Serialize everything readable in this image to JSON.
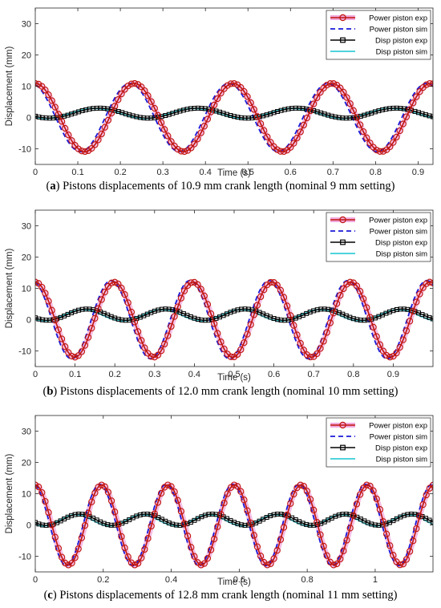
{
  "legend": {
    "power_exp": "Power piston exp",
    "power_sim": "Power piston sim",
    "disp_exp": "Disp piston exp",
    "disp_sim": "Disp piston sim"
  },
  "colors": {
    "power_exp": "#c0140c",
    "power_exp_glow": "#f0a8dc",
    "power_sim": "#1a1ad8",
    "disp_exp": "#000000",
    "disp_sim": "#4fd3dc"
  },
  "captions": [
    {
      "label": "(a)",
      "letter": "a",
      "text": "Pistons displacements of 10.9 mm crank length (nominal 9 mm setting)"
    },
    {
      "label": "(b)",
      "letter": "b",
      "text": "Pistons displacements of 12.0 mm crank length (nominal 10 mm setting)"
    },
    {
      "label": "(c)",
      "letter": "c",
      "text": "Pistons displacements of 12.8 mm crank length (nominal 11 mm setting)"
    }
  ],
  "chart_data": [
    {
      "type": "line",
      "xlabel": "Time (s)",
      "ylabel": "Displacement (mm)",
      "xlim": [
        0,
        0.935
      ],
      "ylim": [
        -15,
        35
      ],
      "xticks": [
        "0",
        "0.1",
        "0.2",
        "0.3",
        "0.4",
        "0.5",
        "0.6",
        "0.7",
        "0.8",
        "0.9"
      ],
      "yticks": [
        "-10",
        "0",
        "10",
        "20",
        "30"
      ],
      "legend_position": "top-right",
      "grid": false,
      "series_params": {
        "period_s": 0.2325,
        "power_exp": {
          "amplitude_mm": 10.9,
          "peak_time_s": 0.0
        },
        "power_sim": {
          "amplitude_mm": 10.9,
          "peak_time_s": -0.01,
          "min_mm": -11.0
        },
        "disp_exp": {
          "amplitude_mm": 1.6,
          "offset_mm": 1.4,
          "peak_time_s": 0.15
        },
        "disp_sim": {
          "amplitude_mm": 1.6,
          "offset_mm": 1.3,
          "peak_time_s": 0.14
        }
      }
    },
    {
      "type": "line",
      "xlabel": "Time (s)",
      "ylabel": "Displacement (mm)",
      "xlim": [
        0,
        1.0
      ],
      "ylim": [
        -15,
        35
      ],
      "xticks": [
        "0",
        "0.1",
        "0.2",
        "0.3",
        "0.4",
        "0.5",
        "0.6",
        "0.7",
        "0.8",
        "0.9"
      ],
      "yticks": [
        "-10",
        "0",
        "10",
        "20",
        "30"
      ],
      "legend_position": "top-right",
      "grid": false,
      "series_params": {
        "period_s": 0.1985,
        "power_exp": {
          "amplitude_mm": 12.0,
          "peak_time_s": 0.0
        },
        "power_sim": {
          "amplitude_mm": 12.5,
          "peak_time_s": -0.008,
          "min_mm": -12.5
        },
        "disp_exp": {
          "amplitude_mm": 1.8,
          "offset_mm": 1.6,
          "peak_time_s": 0.13
        },
        "disp_sim": {
          "amplitude_mm": 1.8,
          "offset_mm": 1.4,
          "peak_time_s": 0.12
        }
      }
    },
    {
      "type": "line",
      "xlabel": "Time (s)",
      "ylabel": "Displacement (mm)",
      "xlim": [
        0,
        1.17
      ],
      "ylim": [
        -15,
        35
      ],
      "xticks": [
        "0",
        "0.2",
        "0.4",
        "0.6",
        "0.8",
        "1"
      ],
      "yticks": [
        "-10",
        "0",
        "10",
        "20",
        "30"
      ],
      "legend_position": "top-right",
      "grid": false,
      "series_params": {
        "period_s": 0.1955,
        "power_exp": {
          "amplitude_mm": 12.8,
          "peak_time_s": 0.0
        },
        "power_sim": {
          "amplitude_mm": 13.0,
          "peak_time_s": -0.006,
          "min_mm": -13.0
        },
        "disp_exp": {
          "amplitude_mm": 1.8,
          "offset_mm": 1.7,
          "peak_time_s": 0.13
        },
        "disp_sim": {
          "amplitude_mm": 1.8,
          "offset_mm": 1.5,
          "peak_time_s": 0.12
        }
      }
    }
  ]
}
